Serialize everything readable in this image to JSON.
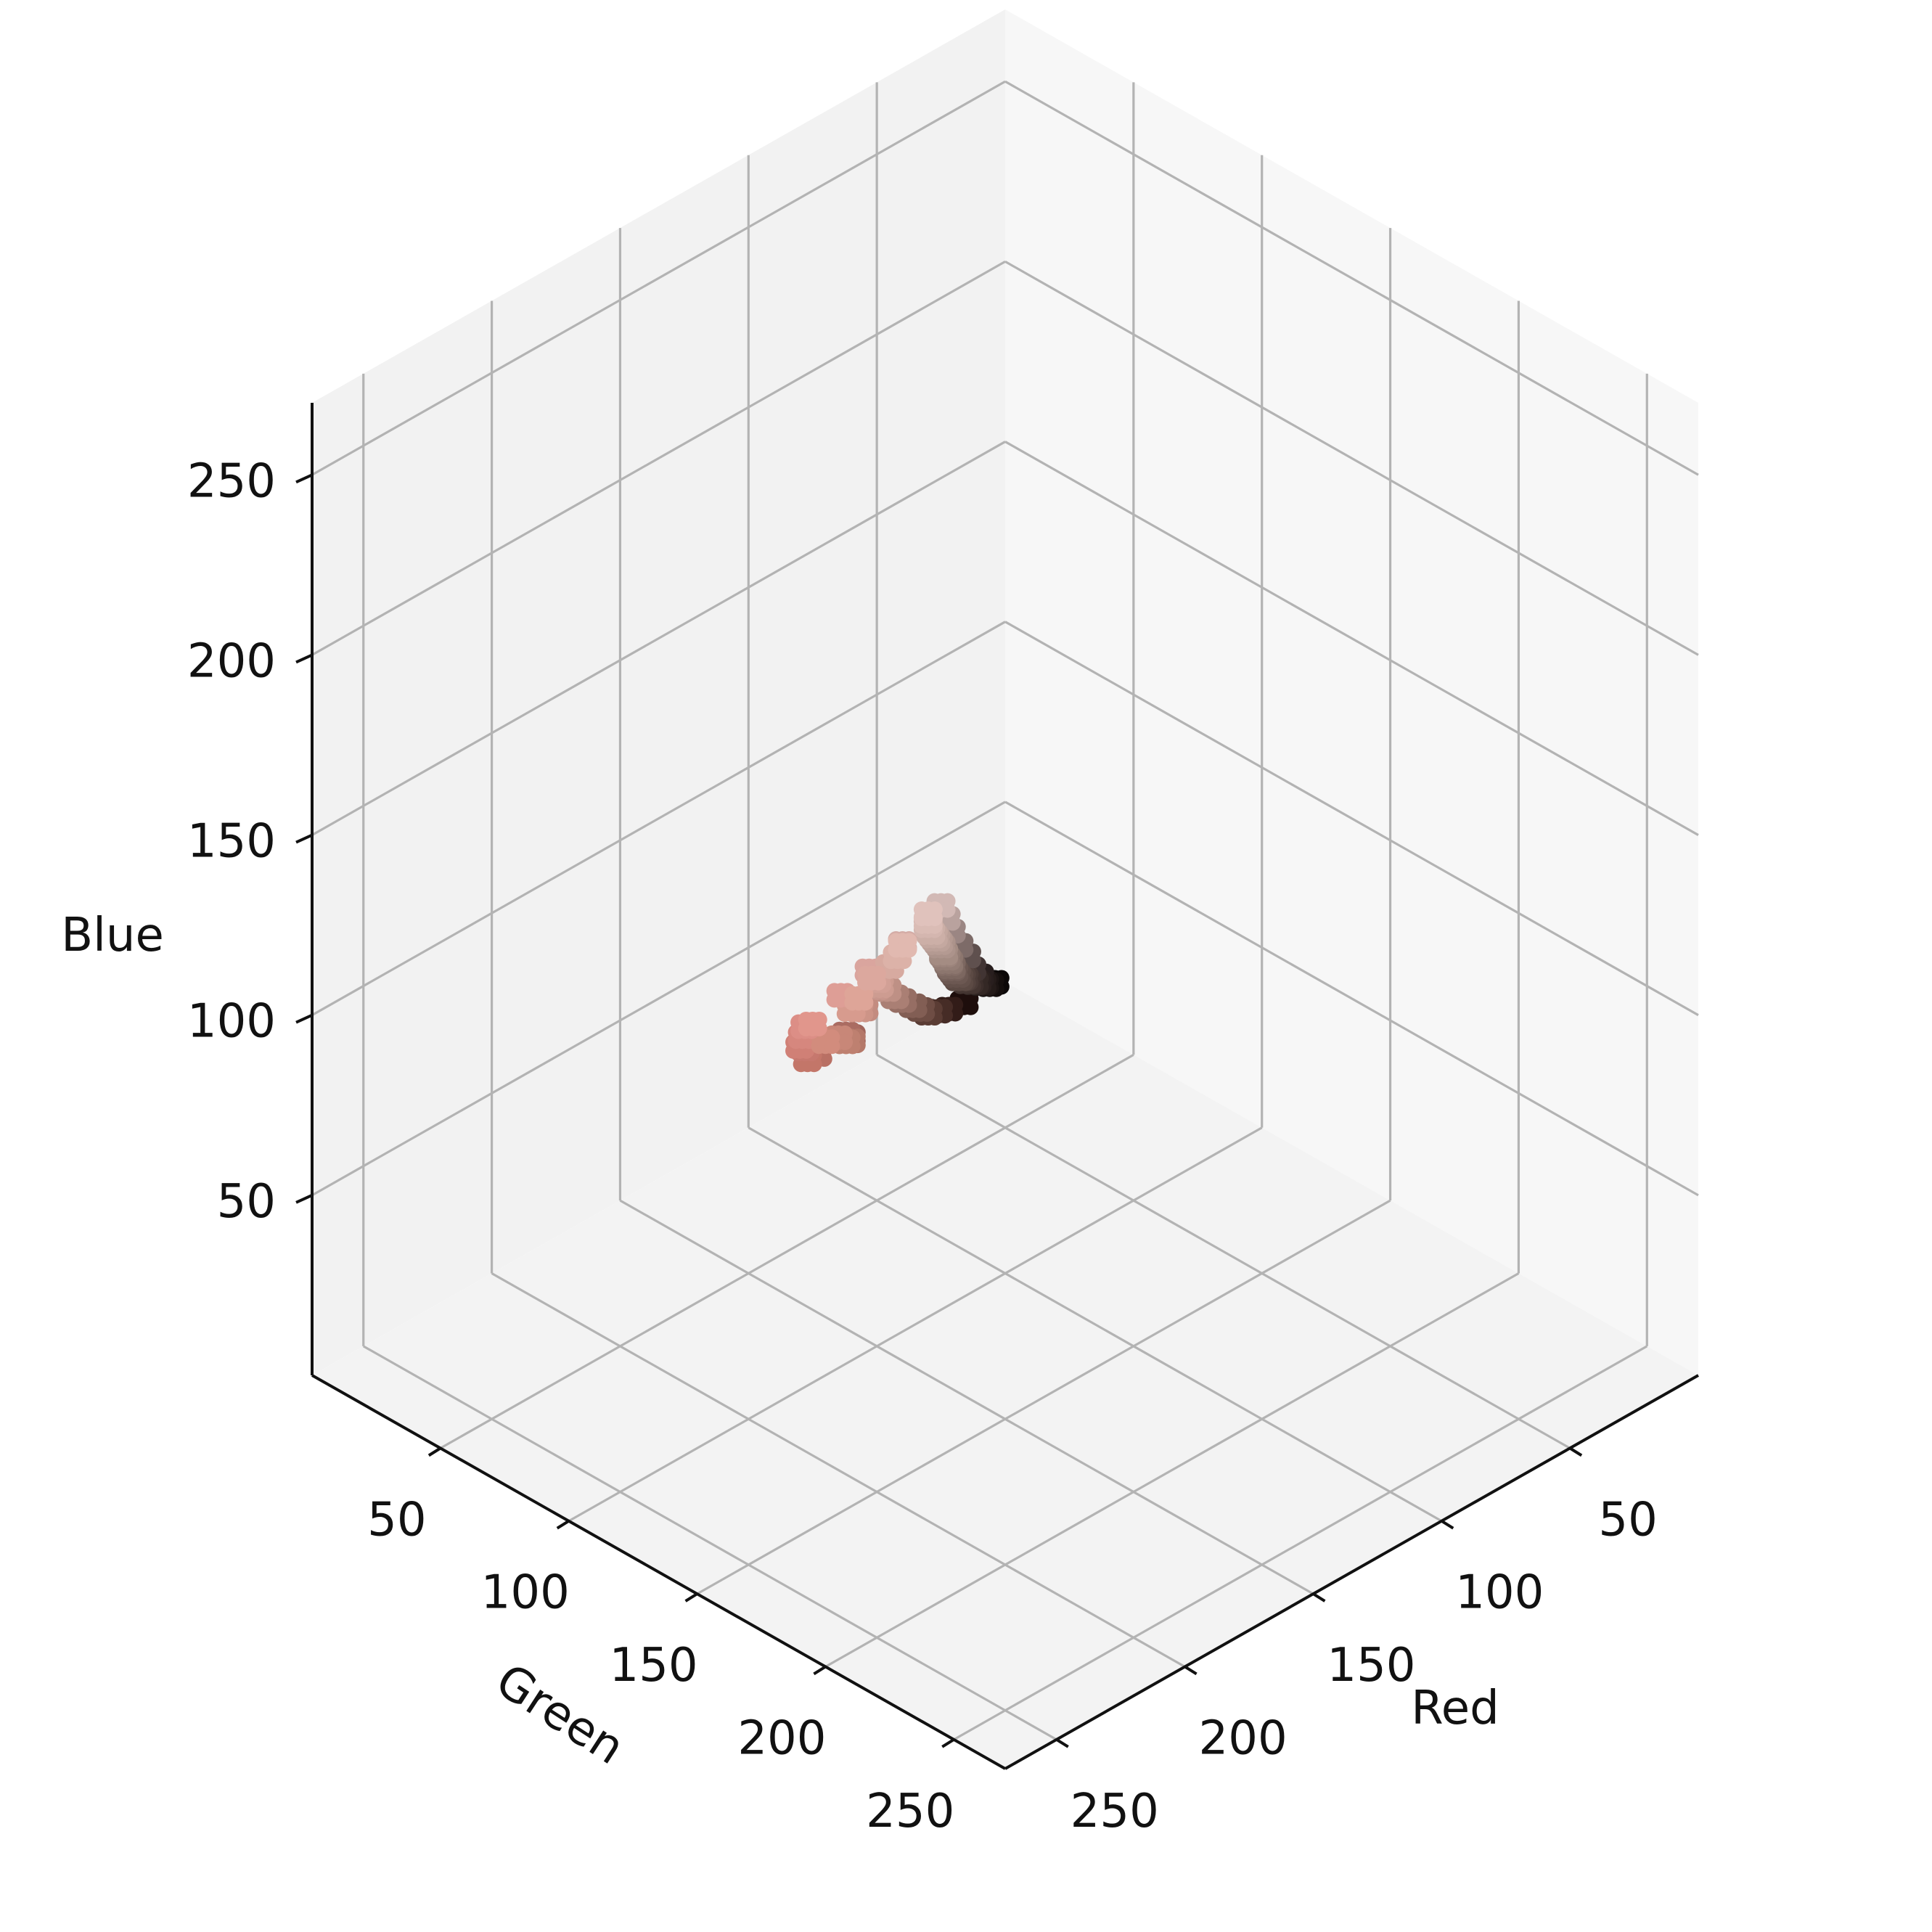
{
  "chart_data": {
    "type": "scatter3d",
    "title": "",
    "axes": {
      "x": {
        "label": "Red",
        "ticks": [
          50,
          100,
          150,
          200,
          250
        ],
        "tick_labels": [
          "50",
          "100",
          "150",
          "200",
          "250"
        ],
        "range": [
          0,
          270
        ]
      },
      "y": {
        "label": "Green",
        "ticks": [
          50,
          100,
          150,
          200,
          250
        ],
        "tick_labels": [
          "50",
          "100",
          "150",
          "200",
          "250"
        ],
        "range": [
          0,
          270
        ]
      },
      "z": {
        "label": "Blue",
        "ticks": [
          50,
          100,
          150,
          200,
          250
        ],
        "tick_labels": [
          "50",
          "100",
          "150",
          "200",
          "250"
        ],
        "range": [
          0,
          270
        ]
      }
    },
    "view": {
      "elevation_deg": 25,
      "azimuth_deg": 45
    },
    "grid": true,
    "legend": "none",
    "point_color": "same as each point's RGB value",
    "data_summary": {
      "red_range": [
        10,
        225
      ],
      "green_range": [
        5,
        195
      ],
      "blue_range": [
        5,
        190
      ],
      "shape": "dense cluster of skin-tone colors stretching from near-black (≈10,8,8) to light pink (≈225,195,190)"
    },
    "points": [
      [
        12,
        8,
        8
      ],
      [
        20,
        14,
        13
      ],
      [
        28,
        20,
        19
      ],
      [
        36,
        27,
        25
      ],
      [
        44,
        33,
        31
      ],
      [
        52,
        40,
        37
      ],
      [
        60,
        46,
        43
      ],
      [
        68,
        53,
        49
      ],
      [
        76,
        60,
        56
      ],
      [
        84,
        67,
        62
      ],
      [
        92,
        74,
        68
      ],
      [
        100,
        81,
        75
      ],
      [
        108,
        88,
        82
      ],
      [
        116,
        95,
        89
      ],
      [
        124,
        103,
        96
      ],
      [
        132,
        110,
        103
      ],
      [
        140,
        118,
        110
      ],
      [
        148,
        125,
        117
      ],
      [
        156,
        132,
        124
      ],
      [
        164,
        140,
        131
      ],
      [
        172,
        147,
        139
      ],
      [
        180,
        154,
        146
      ],
      [
        188,
        161,
        153
      ],
      [
        196,
        168,
        160
      ],
      [
        204,
        175,
        167
      ],
      [
        212,
        182,
        175
      ],
      [
        218,
        188,
        181
      ],
      [
        224,
        194,
        188
      ],
      [
        30,
        14,
        12
      ],
      [
        50,
        28,
        24
      ],
      [
        70,
        44,
        38
      ],
      [
        90,
        60,
        52
      ],
      [
        110,
        77,
        68
      ],
      [
        130,
        94,
        84
      ],
      [
        150,
        110,
        100
      ],
      [
        170,
        127,
        116
      ],
      [
        190,
        144,
        133
      ],
      [
        205,
        156,
        145
      ],
      [
        220,
        168,
        158
      ],
      [
        40,
        30,
        30
      ],
      [
        65,
        52,
        51
      ],
      [
        95,
        80,
        78
      ],
      [
        125,
        107,
        104
      ],
      [
        155,
        134,
        131
      ],
      [
        185,
        162,
        158
      ],
      [
        210,
        185,
        181
      ],
      [
        200,
        150,
        140
      ],
      [
        210,
        160,
        150
      ],
      [
        215,
        170,
        160
      ],
      [
        220,
        178,
        168
      ],
      [
        225,
        185,
        176
      ],
      [
        195,
        140,
        128
      ],
      [
        205,
        148,
        135
      ],
      [
        215,
        155,
        142
      ],
      [
        222,
        165,
        152
      ],
      [
        198,
        120,
        110
      ],
      [
        208,
        128,
        118
      ],
      [
        214,
        135,
        126
      ],
      [
        220,
        142,
        134
      ],
      [
        225,
        150,
        140
      ],
      [
        222,
        158,
        150
      ],
      [
        218,
        165,
        158
      ],
      [
        212,
        172,
        166
      ],
      [
        180,
        120,
        105
      ],
      [
        190,
        128,
        112
      ],
      [
        200,
        135,
        120
      ],
      [
        210,
        140,
        125
      ],
      [
        160,
        100,
        90
      ],
      [
        170,
        108,
        98
      ],
      [
        185,
        112,
        100
      ],
      [
        195,
        118,
        105
      ]
    ]
  }
}
